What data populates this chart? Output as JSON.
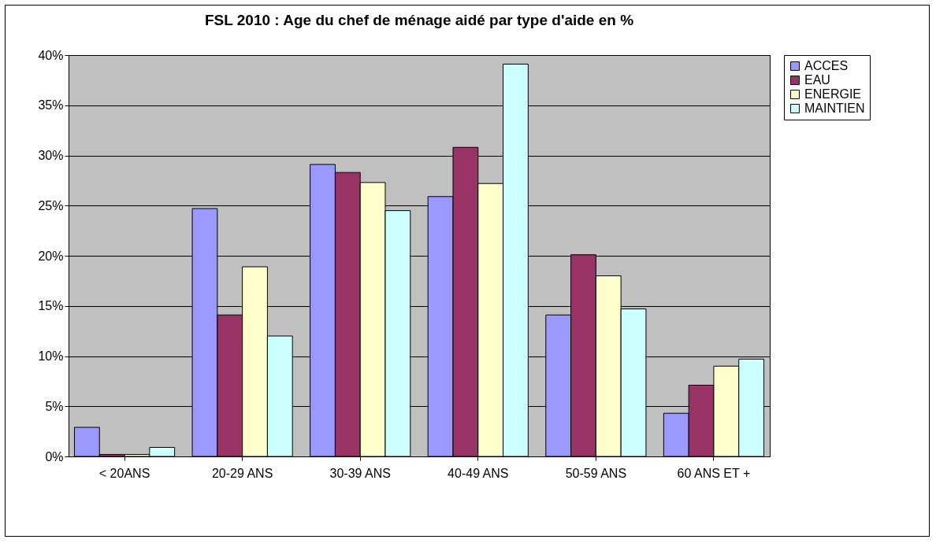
{
  "chart_data": {
    "type": "bar",
    "title": "FSL 2010 : Age du chef de ménage aidé par type d'aide en %",
    "categories": [
      "< 20ANS",
      "20-29 ANS",
      "30-39 ANS",
      "40-49 ANS",
      "50-59 ANS",
      "60 ANS ET +"
    ],
    "series": [
      {
        "name": "ACCES",
        "color": "#9999ff",
        "values": [
          2.9,
          24.7,
          29.1,
          25.9,
          14.1,
          4.3
        ]
      },
      {
        "name": "EAU",
        "color": "#993366",
        "values": [
          0.2,
          14.1,
          28.3,
          30.8,
          20.1,
          7.1
        ]
      },
      {
        "name": "ENERGIE",
        "color": "#ffffcc",
        "values": [
          0.2,
          18.9,
          27.3,
          27.2,
          18.0,
          9.0
        ]
      },
      {
        "name": "MAINTIEN",
        "color": "#ccffff",
        "values": [
          0.9,
          12.0,
          24.5,
          39.1,
          14.7,
          9.7
        ]
      }
    ],
    "ylim": [
      0,
      40
    ],
    "yticks": [
      {
        "value": 0,
        "label": "0%"
      },
      {
        "value": 5,
        "label": "5%"
      },
      {
        "value": 10,
        "label": "10%"
      },
      {
        "value": 15,
        "label": "15%"
      },
      {
        "value": 20,
        "label": "20%"
      },
      {
        "value": 25,
        "label": "25%"
      },
      {
        "value": 30,
        "label": "30%"
      },
      {
        "value": 35,
        "label": "35%"
      },
      {
        "value": 40,
        "label": "40%"
      }
    ],
    "grid": "y",
    "legend": "right"
  }
}
